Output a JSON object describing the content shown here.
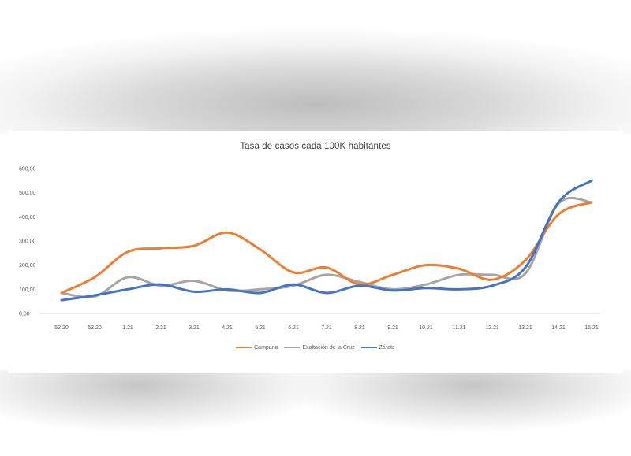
{
  "chart_data": {
    "type": "line",
    "title": "Tasa de casos cada 100K habitantes",
    "categories": [
      "52.20",
      "53.20",
      "1.21",
      "2.21",
      "3.21",
      "4.21",
      "5.21",
      "6.21",
      "7.21",
      "8.21",
      "9.21",
      "10.21",
      "11.21",
      "12.21",
      "13.21",
      "14.21",
      "15.21"
    ],
    "ylim": [
      0,
      600
    ],
    "yticks": [
      "0,00",
      "100,00",
      "200,00",
      "300,00",
      "400,00",
      "500,00",
      "600,00"
    ],
    "series": [
      {
        "name": "Campana",
        "color": "#ED7D31",
        "values": [
          85,
          150,
          255,
          270,
          280,
          335,
          265,
          170,
          190,
          120,
          160,
          200,
          185,
          140,
          220,
          410,
          460
        ]
      },
      {
        "name": "Exaltación de la Cruz",
        "color": "#A5A5A5",
        "values": [
          85,
          70,
          150,
          115,
          135,
          95,
          100,
          115,
          160,
          130,
          100,
          120,
          160,
          160,
          165,
          455,
          460
        ]
      },
      {
        "name": "Zárate",
        "color": "#4472C4",
        "values": [
          55,
          75,
          100,
          120,
          90,
          100,
          85,
          120,
          85,
          115,
          95,
          105,
          100,
          115,
          190,
          460,
          550
        ]
      }
    ],
    "grid": false,
    "legend": "bottom"
  }
}
